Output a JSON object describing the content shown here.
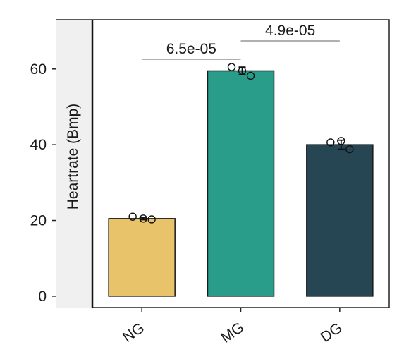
{
  "chart_data": {
    "type": "bar",
    "title": "",
    "xlabel": "",
    "ylabel": "Heartrate (Bmp)",
    "ylim": [
      -3,
      73
    ],
    "yticks": [
      0,
      20,
      40,
      60
    ],
    "categories": [
      "NG",
      "MG",
      "DG"
    ],
    "values": [
      20.5,
      59.5,
      40.0
    ],
    "errors": [
      0.3,
      1.0,
      1.2
    ],
    "colors": [
      "#e8c36a",
      "#2a9d8a",
      "#264653"
    ],
    "points": [
      [
        21.0,
        20.5,
        20.3
      ],
      [
        60.5,
        59.5,
        58.2
      ],
      [
        40.6,
        41.0,
        38.8
      ]
    ],
    "comparisons": [
      {
        "from": "NG",
        "to": "MG",
        "label": "6.5e-05"
      },
      {
        "from": "MG",
        "to": "DG",
        "label": "4.9e-05"
      }
    ],
    "grid": false,
    "legend": "none"
  }
}
